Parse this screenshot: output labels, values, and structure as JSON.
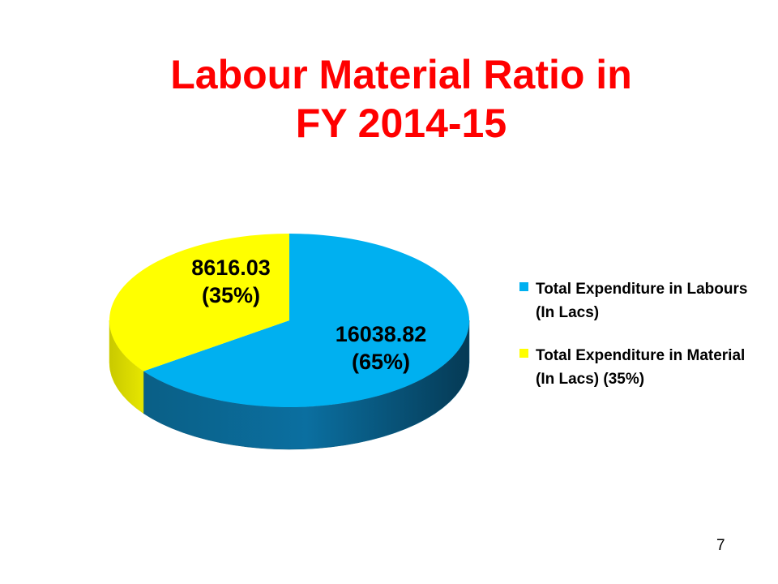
{
  "slide": {
    "title_line1": "Labour Material Ratio in",
    "title_line2": "FY 2014-15",
    "page_number": "7"
  },
  "chart_data": {
    "type": "pie",
    "style": "3d",
    "title": "Labour Material Ratio in FY 2014-15",
    "legend_position": "right",
    "slices": [
      {
        "legend": "Total Expenditure in Labours (In Lacs)",
        "value": 16038.82,
        "value_label": "16038.82",
        "percent_label": "(65%)",
        "color": "#00b0f0",
        "side_color": "#0a5f86"
      },
      {
        "legend": "Total Expenditure in Material (In Lacs) (35%)",
        "value": 8616.03,
        "value_label": "8616.03",
        "percent_label": "(35%)",
        "color": "#ffff00",
        "side_color": "#d6d600"
      }
    ]
  }
}
